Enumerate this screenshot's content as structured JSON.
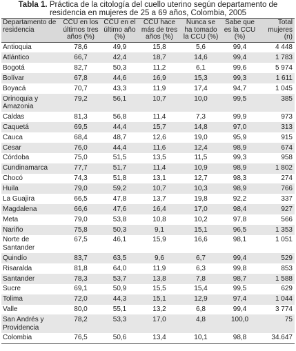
{
  "title": {
    "label": "Tabla 1.",
    "text": "Práctica de la citología del cuello uterino según departamento de residencia en mujeres de 25 a 69 años, Colombia, 2005"
  },
  "table": {
    "headers": [
      "Departamento de residencia",
      "CCU en los últimos tres años (%)",
      "CCU en el último año (%)",
      "CCU hace más de tres años (%)",
      "Nunca se ha tomado la CCU (%)",
      "Sabe que es la CCU (%)",
      "Total mujeres (n)"
    ],
    "rows": [
      [
        "Antioquia",
        "78,6",
        "49,9",
        "15,8",
        "5,6",
        "99,4",
        "4 448"
      ],
      [
        "Atlántico",
        "66,7",
        "42,4",
        "18,7",
        "14,6",
        "99,4",
        "1 783"
      ],
      [
        "Bogotá",
        "82,7",
        "50,3",
        "11,2",
        "6,1",
        "99,6",
        "5 974"
      ],
      [
        "Bolívar",
        "67,8",
        "44,6",
        "16,9",
        "15,3",
        "99,3",
        "1 611"
      ],
      [
        "Boyacá",
        "70,7",
        "43,3",
        "11,9",
        "17,4",
        "94,7",
        "1 045"
      ],
      [
        "Orinoquia y Amazonia",
        "79,2",
        "56,1",
        "10,7",
        "10,0",
        "99,5",
        "385"
      ],
      [
        "Caldas",
        "81,3",
        "56,8",
        "11,4",
        "7,3",
        "99,9",
        "973"
      ],
      [
        "Caquetá",
        "69,5",
        "44,4",
        "15,7",
        "14,8",
        "97,0",
        "313"
      ],
      [
        "Cauca",
        "68,4",
        "48,7",
        "12,6",
        "19,0",
        "95,9",
        "915"
      ],
      [
        "Cesar",
        "76,0",
        "44,4",
        "11,6",
        "12,4",
        "98,9",
        "674"
      ],
      [
        "Córdoba",
        "75,0",
        "51,5",
        "13,5",
        "11,5",
        "99,3",
        "958"
      ],
      [
        "Cundinamarca",
        "77,7",
        "51,7",
        "11,4",
        "10,9",
        "98,9",
        "1 802"
      ],
      [
        "Chocó",
        "74,3",
        "51,8",
        "13,1",
        "12,7",
        "98,3",
        "274"
      ],
      [
        "Huila",
        "79,0",
        "59,2",
        "10,7",
        "10,3",
        "98,9",
        "766"
      ],
      [
        "La Guajira",
        "66,5",
        "47,8",
        "13,7",
        "19,8",
        "92,2",
        "337"
      ],
      [
        "Magdalena",
        "66,6",
        "47,6",
        "16,4",
        "17,0",
        "98,4",
        "927"
      ],
      [
        "Meta",
        "79,0",
        "53,8",
        "10,8",
        "10,2",
        "97,8",
        "566"
      ],
      [
        "Nariño",
        "75,8",
        "50,3",
        "9,1",
        "15,1",
        "96,5",
        "1 353"
      ],
      [
        "Norte de Santander",
        "67,5",
        "46,1",
        "15,9",
        "16,6",
        "98,1",
        "1 051"
      ],
      [
        "Quindío",
        "83,7",
        "63,5",
        "9,6",
        "6,7",
        "99,4",
        "529"
      ],
      [
        "Risaralda",
        "81,8",
        "64,0",
        "11,9",
        "6,3",
        "99,8",
        "853"
      ],
      [
        "Santander",
        "78,3",
        "53,7",
        "13,8",
        "7,8",
        "98,7",
        "1 588"
      ],
      [
        "Sucre",
        "69,1",
        "50,9",
        "15,5",
        "15,4",
        "99,5",
        "629"
      ],
      [
        "Tolima",
        "72,0",
        "44,3",
        "15,1",
        "12,9",
        "97,4",
        "1 044"
      ],
      [
        "Valle",
        "80,0",
        "55,1",
        "13,2",
        "6,8",
        "99,4",
        "3 774"
      ],
      [
        "San Andrés y Providencia",
        "78,2",
        "53,3",
        "17,0",
        "4,8",
        "100,0",
        "75"
      ],
      [
        "Colombia",
        "76,5",
        "50,6",
        "13,4",
        "10,1",
        "98,8",
        "34.647"
      ]
    ]
  }
}
